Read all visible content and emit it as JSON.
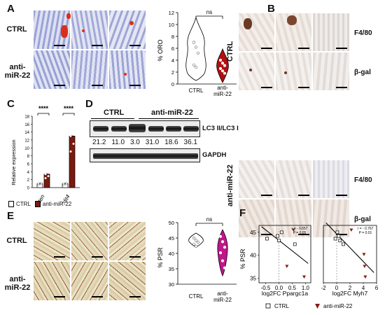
{
  "panels": {
    "A": {
      "label": "A",
      "rows": [
        "CTRL",
        "anti-\nmiR-22"
      ],
      "plot": {
        "ylabel": "% ORO",
        "yticks": [
          0,
          2,
          4,
          6,
          8,
          10,
          12
        ],
        "groups": [
          "CTRL",
          "anti-\nmiR-22"
        ],
        "sig": "ns",
        "colors": {
          "ctrl": "#ffffff",
          "anti": "#b01010"
        }
      }
    },
    "B": {
      "label": "B",
      "groups": [
        "CTRL",
        "anti-miR-22"
      ],
      "markers": [
        "F4/80",
        "β-gal",
        "F4/80",
        "β-gal"
      ]
    },
    "C": {
      "label": "C",
      "ylabel": "Relative expression",
      "yticks": [
        0,
        2,
        4,
        6,
        8,
        10,
        12,
        14,
        16,
        18
      ],
      "genes": [
        "Pten",
        "Ddit4"
      ],
      "sig": [
        "****",
        "****"
      ],
      "legend": [
        "CTRL",
        "anti-miR-22"
      ],
      "colors": {
        "ctrl": "#ffffff",
        "anti": "#7b1a0e"
      }
    },
    "D": {
      "label": "D",
      "groups": [
        "CTRL",
        "anti-miR-22"
      ],
      "values": [
        "21.2",
        "11.0",
        "3.0",
        "31.0",
        "18.6",
        "36.1"
      ],
      "bands": [
        "LC3 II/LC3 I",
        "GAPDH"
      ]
    },
    "E": {
      "label": "E",
      "rows": [
        "CTRL",
        "anti-\nmiR-22"
      ],
      "plot": {
        "ylabel": "% PSR",
        "yticks": [
          30,
          35,
          40,
          45,
          50
        ],
        "groups": [
          "CTRL",
          "anti-\nmiR-22"
        ],
        "sig": "ns",
        "colors": {
          "ctrl": "#ffffff",
          "anti": "#c0178a"
        }
      }
    },
    "F": {
      "label": "F",
      "ylabel": "% PSR",
      "left": {
        "xlabel": "log2FC Ppargc1a",
        "xticks": [
          "-0.5",
          "0.0",
          "0.5",
          "1.0"
        ],
        "yticks": [
          35,
          40,
          45
        ],
        "stats": [
          "r = - 0.657",
          "P = 0.05"
        ]
      },
      "right": {
        "xlabel": "log2FC Myh7",
        "xticks": [
          "-2",
          "0",
          "2",
          "4",
          "6"
        ],
        "stats": [
          "r = - 0.767",
          "P = 0.01"
        ]
      },
      "legend": [
        "CTRL",
        "anti-miR-22"
      ],
      "colors": {
        "anti": "#8b1a10"
      }
    }
  },
  "chart_data": [
    {
      "type": "scatter",
      "panel": "A",
      "ylabel": "% ORO",
      "ylim": [
        0,
        12
      ],
      "categories": [
        "CTRL",
        "anti-miR-22"
      ],
      "series": [
        {
          "name": "CTRL",
          "values": [
            7.0,
            6.2,
            5.2,
            3.2,
            2.8
          ]
        },
        {
          "name": "anti-miR-22",
          "values": [
            4.0,
            3.5,
            3.1,
            2.6,
            2.2,
            1.8
          ]
        }
      ]
    },
    {
      "type": "bar",
      "panel": "C",
      "ylabel": "Relative expression",
      "ylim": [
        0,
        18
      ],
      "categories": [
        "Pten",
        "Ddit4"
      ],
      "series": [
        {
          "name": "CTRL",
          "values": [
            1.0,
            1.0
          ]
        },
        {
          "name": "anti-miR-22",
          "values": [
            3.4,
            13.0
          ]
        }
      ]
    },
    {
      "type": "scatter",
      "panel": "E",
      "ylabel": "% PSR",
      "ylim": [
        30,
        50
      ],
      "categories": [
        "CTRL",
        "anti-miR-22"
      ],
      "series": [
        {
          "name": "CTRL",
          "values": [
            45.0,
            44.2,
            43.6,
            43.0,
            42.3
          ]
        },
        {
          "name": "anti-miR-22",
          "values": [
            45.5,
            43.8,
            42.0,
            40.2,
            37.6,
            35.3
          ]
        }
      ]
    },
    {
      "type": "scatter",
      "panel": "F-left",
      "xlabel": "log2FC Ppargc1a",
      "ylabel": "% PSR",
      "xlim": [
        -0.75,
        1.2
      ],
      "ylim": [
        34,
        46.5
      ],
      "series": [
        {
          "name": "CTRL",
          "x": [
            -0.45,
            -0.05,
            0.0,
            0.1,
            0.6
          ],
          "y": [
            43.6,
            44.2,
            43.2,
            45.0,
            42.4
          ]
        },
        {
          "name": "anti-miR-22",
          "x": [
            0.3,
            0.55,
            0.95
          ],
          "y": [
            37.6,
            45.5,
            35.3
          ]
        }
      ]
    },
    {
      "type": "scatter",
      "panel": "F-right",
      "xlabel": "log2FC Myh7",
      "ylabel": "% PSR",
      "xlim": [
        -2,
        6
      ],
      "ylim": [
        34,
        46.5
      ],
      "series": [
        {
          "name": "CTRL",
          "x": [
            -0.2,
            0.1,
            0.3,
            0.5,
            1.0
          ],
          "y": [
            43.6,
            45.0,
            44.2,
            43.2,
            42.4
          ]
        },
        {
          "name": "anti-miR-22",
          "x": [
            2.2,
            4.1,
            4.2,
            4.3
          ],
          "y": [
            45.5,
            40.2,
            37.6,
            35.3
          ]
        }
      ]
    }
  ]
}
